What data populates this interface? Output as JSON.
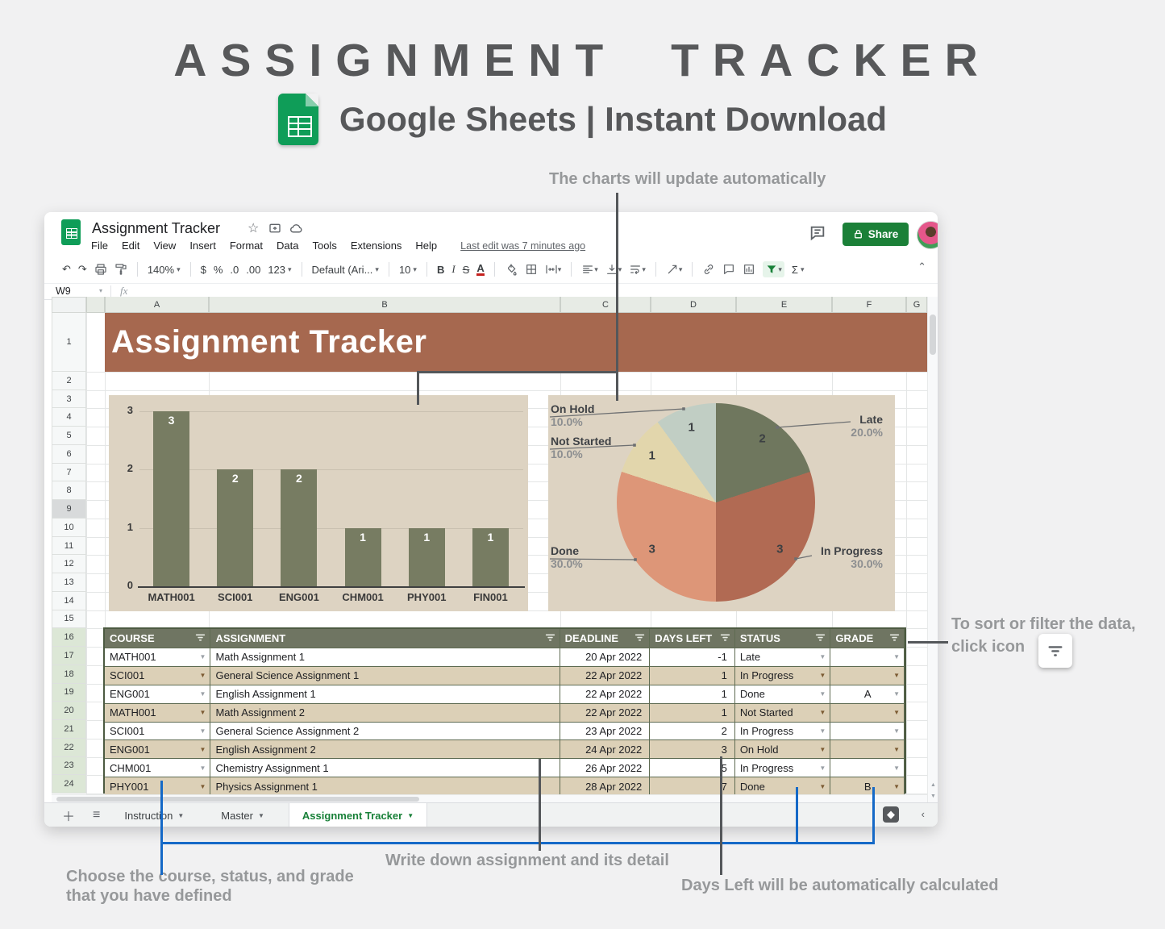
{
  "header": {
    "title": "ASSIGNMENT TRACKER",
    "subtitle": "Google Sheets | Instant Download"
  },
  "callouts": {
    "charts_note": "The charts will update automatically",
    "sort_note_line1": "To sort or filter the data,",
    "sort_note_line2": "click icon",
    "choose_note_line1": "Choose the course, status, and grade",
    "choose_note_line2": "that you have defined",
    "write_note": "Write down assignment and its detail",
    "days_note": "Days Left will be automatically calculated"
  },
  "titlebar": {
    "doc_title": "Assignment Tracker",
    "share_label": "Share",
    "last_edit": "Last edit was 7 minutes ago"
  },
  "menu": [
    "File",
    "Edit",
    "View",
    "Insert",
    "Format",
    "Data",
    "Tools",
    "Extensions",
    "Help"
  ],
  "toolbar": {
    "zoom": "140%",
    "currency": "$",
    "percent": "%",
    "decrease_decimal": ".0",
    "increase_decimal": ".00",
    "number_format": "123",
    "font": "Default (Ari...",
    "font_size": "10",
    "bold": "B",
    "italic": "I",
    "strikethrough": "S",
    "text_color": "A",
    "functions": "Σ"
  },
  "formula_bar": {
    "name_box": "W9",
    "fx_label": "fx"
  },
  "grid": {
    "banner": "Assignment Tracker",
    "columns": [
      "A",
      "B",
      "C",
      "D",
      "E",
      "F",
      "G"
    ],
    "first_row": 1,
    "last_row": 24,
    "selected_row": 9,
    "table_first_row": 16
  },
  "chart_data": [
    {
      "type": "bar",
      "categories": [
        "MATH001",
        "SCI001",
        "ENG001",
        "CHM001",
        "PHY001",
        "FIN001"
      ],
      "values": [
        3,
        2,
        2,
        1,
        1,
        1
      ],
      "title": "",
      "xlabel": "",
      "ylabel": "",
      "ylim": [
        0,
        3
      ],
      "yticks": [
        0,
        1,
        2,
        3
      ],
      "grid": true,
      "value_labels": true,
      "bar_color": "#777C62",
      "background": "#DDD3C2"
    },
    {
      "type": "pie",
      "labels": [
        "Late",
        "In Progress",
        "Done",
        "Not Started",
        "On Hold"
      ],
      "values": [
        2,
        3,
        3,
        1,
        1
      ],
      "percent_labels": [
        "20.0%",
        "30.0%",
        "30.0%",
        "10.0%",
        "10.0%"
      ],
      "colors": [
        "#6F775E",
        "#B16A53",
        "#DD9678",
        "#E2D6AC",
        "#C1CEC4"
      ],
      "start_angle": 0,
      "clockwise": true,
      "background": "#DDD3C2"
    }
  ],
  "table": {
    "headers": [
      "COURSE",
      "ASSIGNMENT",
      "DEADLINE",
      "DAYS LEFT",
      "STATUS",
      "GRADE"
    ],
    "rows": [
      {
        "course": "MATH001",
        "assignment": "Math Assignment 1",
        "deadline": "20 Apr 2022",
        "days_left": "-1",
        "status": "Late",
        "grade": ""
      },
      {
        "course": "SCI001",
        "assignment": "General Science Assignment 1",
        "deadline": "22 Apr 2022",
        "days_left": "1",
        "status": "In Progress",
        "grade": ""
      },
      {
        "course": "ENG001",
        "assignment": "English Assignment 1",
        "deadline": "22 Apr 2022",
        "days_left": "1",
        "status": "Done",
        "grade": "A"
      },
      {
        "course": "MATH001",
        "assignment": "Math Assignment 2",
        "deadline": "22 Apr 2022",
        "days_left": "1",
        "status": "Not Started",
        "grade": ""
      },
      {
        "course": "SCI001",
        "assignment": "General Science Assignment 2",
        "deadline": "23 Apr 2022",
        "days_left": "2",
        "status": "In Progress",
        "grade": ""
      },
      {
        "course": "ENG001",
        "assignment": "English Assignment 2",
        "deadline": "24 Apr 2022",
        "days_left": "3",
        "status": "On Hold",
        "grade": ""
      },
      {
        "course": "CHM001",
        "assignment": "Chemistry Assignment 1",
        "deadline": "26 Apr 2022",
        "days_left": "5",
        "status": "In Progress",
        "grade": ""
      },
      {
        "course": "PHY001",
        "assignment": "Physics Assignment 1",
        "deadline": "28 Apr 2022",
        "days_left": "7",
        "status": "Done",
        "grade": "B"
      }
    ]
  },
  "tabs": {
    "items": [
      "Instruction",
      "Master",
      "Assignment Tracker"
    ],
    "active": "Assignment Tracker"
  },
  "colors": {
    "banner": "#A6684F",
    "table_header": "#6F7562",
    "table_row_alt": "#DCD0B7",
    "chart_background": "#DDD3C2",
    "bar_color": "#777C62",
    "google_green": "#0F9D58",
    "share_green": "#1B8038",
    "annotation_blue": "#1569C7",
    "annotation_gray": "#54575A",
    "note_text": "#96989A"
  }
}
